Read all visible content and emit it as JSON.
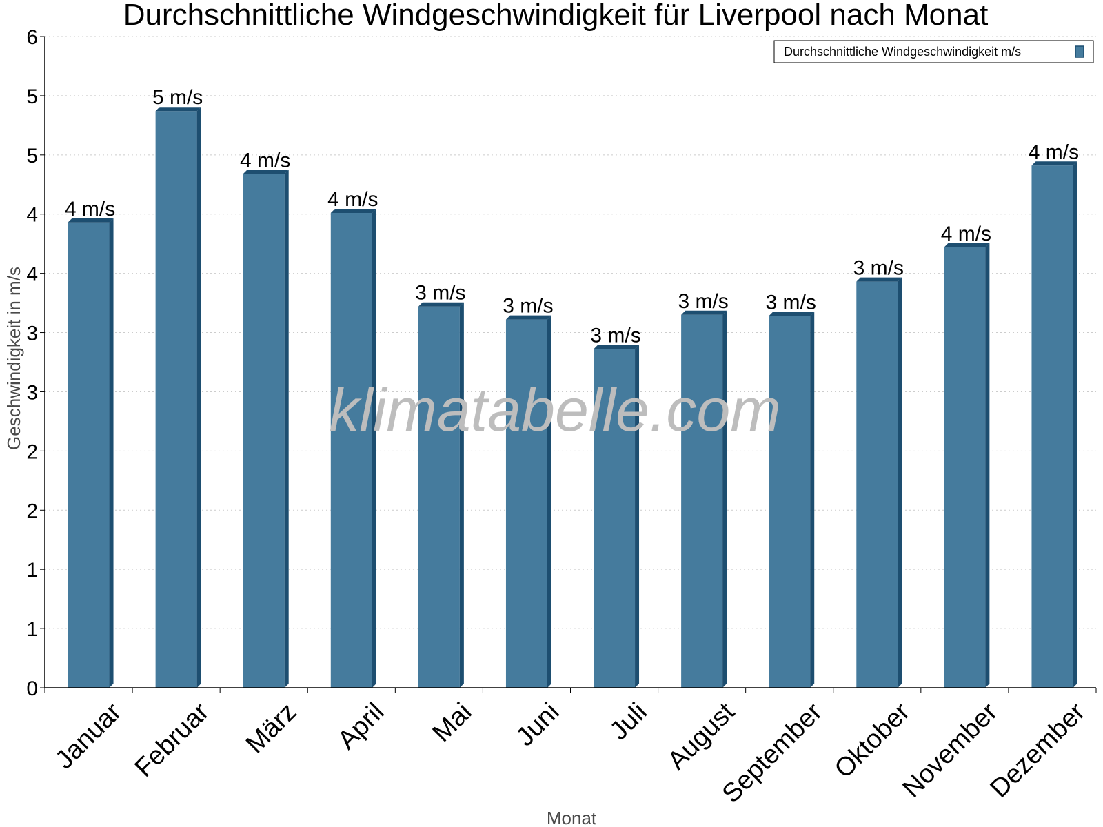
{
  "chart_data": {
    "type": "bar",
    "title": "Durchschnittliche Windgeschwindigkeit für Liverpool nach Monat",
    "xlabel": "Monat",
    "ylabel": "Geschwindigkeit in m/s",
    "categories": [
      "Januar",
      "Februar",
      "März",
      "April",
      "Mai",
      "Juni",
      "Juli",
      "August",
      "September",
      "Oktober",
      "November",
      "Dezember"
    ],
    "series": [
      {
        "name": "Durchschnittliche Windgeschwindigkeit m/s",
        "values": [
          3.93,
          4.87,
          4.34,
          4.01,
          3.22,
          3.11,
          2.86,
          3.15,
          3.14,
          3.43,
          3.72,
          4.41
        ],
        "data_labels": [
          "4 m/s",
          "5 m/s",
          "4 m/s",
          "4 m/s",
          "3 m/s",
          "3 m/s",
          "3 m/s",
          "3 m/s",
          "3 m/s",
          "3 m/s",
          "4 m/s",
          "4 m/s"
        ]
      }
    ],
    "ylim": [
      0,
      5.5
    ],
    "ytick_values": [
      0,
      0.5,
      1,
      1.5,
      2,
      2.5,
      3,
      3.5,
      4,
      4.5,
      5,
      5.5
    ],
    "ytick_labels": [
      "0",
      "1",
      "1",
      "2",
      "2",
      "3",
      "3",
      "4",
      "4",
      "5",
      "5",
      "6"
    ],
    "grid": true,
    "legend_position": "top-right",
    "colors": {
      "bar": "#457b9d",
      "bar_side": "#1d4e70",
      "grid": "#cccccc",
      "axis": "#000000"
    }
  },
  "watermark": "klimatabelle.com"
}
